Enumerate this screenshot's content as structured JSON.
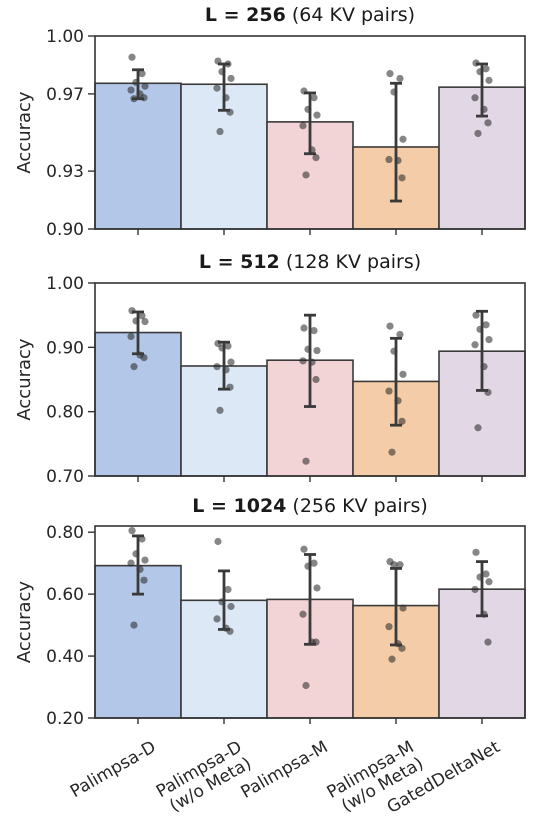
{
  "chart_data": [
    {
      "type": "bar",
      "title_bold": "L = 256",
      "title_rest": " (64 KV pairs)",
      "ylabel": "Accuracy",
      "ylim": [
        0.9,
        1.0
      ],
      "yticks": [
        0.9,
        0.93,
        0.97,
        1.0
      ],
      "ytick_labels": [
        "0.90",
        "0.93",
        "0.97",
        "1.00"
      ],
      "categories": [
        "Palimpsa-D",
        "Palimpsa-D (w/o Meta)",
        "Palimpsa-M",
        "Palimpsa-M (w/o Meta)",
        "GatedDeltaNet"
      ],
      "values": [
        0.9755,
        0.975,
        0.9555,
        0.9425,
        0.9735
      ],
      "error_low": [
        0.9675,
        0.9615,
        0.939,
        0.9145,
        0.9585
      ],
      "error_high": [
        0.9825,
        0.9855,
        0.9705,
        0.9755,
        0.9855
      ],
      "points": [
        [
          0.989,
          0.9805,
          0.976,
          0.974,
          0.972,
          0.97,
          0.968,
          0.9675
        ],
        [
          0.987,
          0.9855,
          0.9815,
          0.978,
          0.973,
          0.968,
          0.9605,
          0.9505
        ],
        [
          0.9715,
          0.968,
          0.962,
          0.959,
          0.9535,
          0.941,
          0.937,
          0.928
        ],
        [
          0.9805,
          0.978,
          0.971,
          0.9465,
          0.936,
          0.9355,
          0.9265
        ],
        [
          0.986,
          0.983,
          0.9815,
          0.977,
          0.968,
          0.962,
          0.955,
          0.9495
        ]
      ],
      "colors": [
        "#b3c8e8",
        "#dde8f6",
        "#f2d4d6",
        "#f4cda8",
        "#e2d8e5"
      ]
    },
    {
      "type": "bar",
      "title_bold": "L = 512",
      "title_rest": " (128 KV pairs)",
      "ylabel": "Accuracy",
      "ylim": [
        0.7,
        1.0
      ],
      "yticks": [
        0.7,
        0.8,
        0.9,
        1.0
      ],
      "ytick_labels": [
        "0.70",
        "0.80",
        "0.90",
        "1.00"
      ],
      "categories": [
        "Palimpsa-D",
        "Palimpsa-D (w/o Meta)",
        "Palimpsa-M",
        "Palimpsa-M (w/o Meta)",
        "GatedDeltaNet"
      ],
      "values": [
        0.923,
        0.871,
        0.88,
        0.847,
        0.894
      ],
      "error_low": [
        0.89,
        0.835,
        0.808,
        0.779,
        0.833
      ],
      "error_high": [
        0.955,
        0.908,
        0.95,
        0.914,
        0.956
      ],
      "points": [
        [
          0.957,
          0.949,
          0.941,
          0.94,
          0.917,
          0.888,
          0.884,
          0.87
        ],
        [
          0.906,
          0.902,
          0.899,
          0.877,
          0.87,
          0.865,
          0.838,
          0.802
        ],
        [
          0.93,
          0.926,
          0.897,
          0.895,
          0.879,
          0.877,
          0.85,
          0.723
        ],
        [
          0.933,
          0.92,
          0.894,
          0.858,
          0.832,
          0.817,
          0.785,
          0.737
        ],
        [
          0.95,
          0.935,
          0.928,
          0.912,
          0.904,
          0.87,
          0.83,
          0.775
        ]
      ],
      "colors": [
        "#b3c8e8",
        "#dde8f6",
        "#f2d4d6",
        "#f4cda8",
        "#e2d8e5"
      ]
    },
    {
      "type": "bar",
      "title_bold": "L = 1024",
      "title_rest": " (256 KV pairs)",
      "ylabel": "Accuracy",
      "ylim": [
        0.2,
        0.82
      ],
      "yticks": [
        0.2,
        0.4,
        0.6,
        0.8
      ],
      "ytick_labels": [
        "0.20",
        "0.40",
        "0.60",
        "0.80"
      ],
      "categories": [
        "Palimpsa-D",
        "Palimpsa-D (w/o Meta)",
        "Palimpsa-M",
        "Palimpsa-M (w/o Meta)",
        "GatedDeltaNet"
      ],
      "values": [
        0.692,
        0.58,
        0.583,
        0.563,
        0.616
      ],
      "error_low": [
        0.6,
        0.486,
        0.438,
        0.436,
        0.53
      ],
      "error_high": [
        0.788,
        0.675,
        0.728,
        0.683,
        0.705
      ],
      "points": [
        [
          0.805,
          0.778,
          0.73,
          0.71,
          0.7,
          0.68,
          0.645,
          0.5
        ],
        [
          0.77,
          0.615,
          0.575,
          0.56,
          0.52,
          0.49,
          0.48
        ],
        [
          0.745,
          0.7,
          0.69,
          0.62,
          0.535,
          0.445,
          0.445,
          0.305
        ],
        [
          0.705,
          0.695,
          0.695,
          0.555,
          0.495,
          0.44,
          0.425,
          0.39
        ],
        [
          0.735,
          0.665,
          0.655,
          0.64,
          0.615,
          0.535,
          0.445
        ]
      ],
      "colors": [
        "#b3c8e8",
        "#dde8f6",
        "#f2d4d6",
        "#f4cda8",
        "#e2d8e5"
      ]
    }
  ],
  "x_tick_labels": [
    [
      "Palimpsa-D"
    ],
    [
      "Palimpsa-D",
      "(w/o Meta)"
    ],
    [
      "Palimpsa-M"
    ],
    [
      "Palimpsa-M",
      "(w/o Meta)"
    ],
    [
      "GatedDeltaNet"
    ]
  ]
}
